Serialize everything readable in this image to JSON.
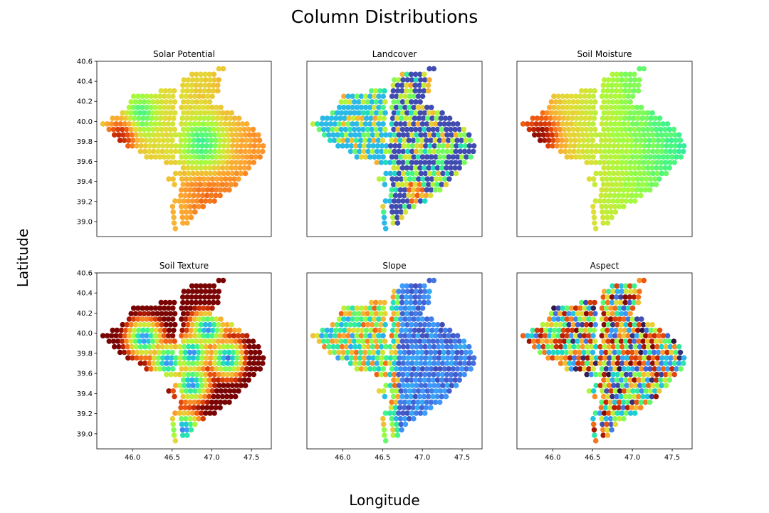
{
  "figure": {
    "suptitle": "Column Distributions",
    "xlabel": "Longitude",
    "ylabel": "Latitude"
  },
  "chart_data": [
    {
      "type": "scatter",
      "title": "Solar Potential",
      "xlim": [
        45.55,
        47.75
      ],
      "ylim": [
        38.85,
        40.6
      ],
      "xticks": [],
      "yticks": [
        "39.0",
        "39.2",
        "39.4",
        "39.6",
        "39.8",
        "40.0",
        "40.2",
        "40.4",
        "40.6"
      ],
      "colormap": "turbo",
      "pattern": "solar"
    },
    {
      "type": "scatter",
      "title": "Landcover",
      "xlim": [
        45.55,
        47.75
      ],
      "ylim": [
        38.85,
        40.6
      ],
      "xticks": [],
      "yticks": [],
      "colormap": "turbo",
      "pattern": "landcover"
    },
    {
      "type": "scatter",
      "title": "Soil Moisture",
      "xlim": [
        45.55,
        47.75
      ],
      "ylim": [
        38.85,
        40.6
      ],
      "xticks": [],
      "yticks": [],
      "colormap": "turbo",
      "pattern": "moisture"
    },
    {
      "type": "scatter",
      "title": "Soil Texture",
      "xlim": [
        45.55,
        47.75
      ],
      "ylim": [
        38.85,
        40.6
      ],
      "xticks": [
        "46.0",
        "46.5",
        "47.0",
        "47.5"
      ],
      "yticks": [
        "39.0",
        "39.2",
        "39.4",
        "39.6",
        "39.8",
        "40.0",
        "40.2",
        "40.4",
        "40.6"
      ],
      "colormap": "turbo",
      "pattern": "texture"
    },
    {
      "type": "scatter",
      "title": "Slope",
      "xlim": [
        45.55,
        47.75
      ],
      "ylim": [
        38.85,
        40.6
      ],
      "xticks": [
        "46.0",
        "46.5",
        "47.0",
        "47.5"
      ],
      "yticks": [],
      "colormap": "turbo",
      "pattern": "slope"
    },
    {
      "type": "scatter",
      "title": "Aspect",
      "xlim": [
        45.55,
        47.75
      ],
      "ylim": [
        38.85,
        40.6
      ],
      "xticks": [
        "46.0",
        "46.5",
        "47.0",
        "47.5"
      ],
      "yticks": [],
      "colormap": "turbo",
      "pattern": "aspect"
    }
  ]
}
